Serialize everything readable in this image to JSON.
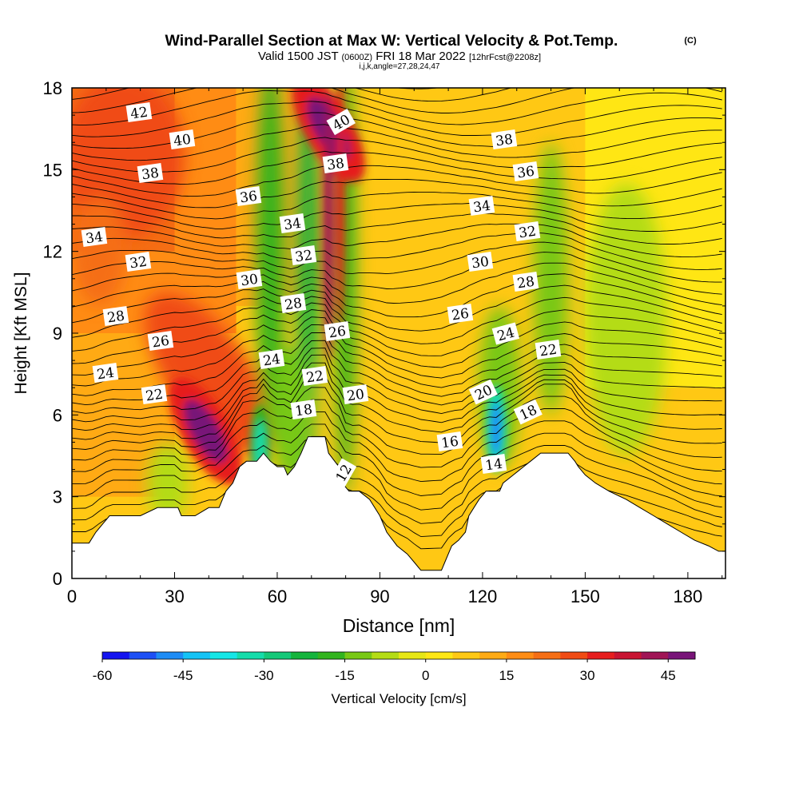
{
  "chart_data": {
    "type": "heatmap",
    "title": {
      "main": "Wind-Parallel Section at Max W: Vertical Velocity & Pot.Temp.",
      "copyright": "(C)",
      "valid_prefix": "Valid 1500 JST",
      "utc": "(0600Z)",
      "date": "FRI 18 Mar 2022",
      "forecast": "[12hrFcst@2208z]",
      "grid": "i,j,k,angle=27,28,24,47"
    },
    "xlabel": "Distance [nm]",
    "ylabel": "Height [Kft MSL]",
    "xlim": [
      0,
      191
    ],
    "ylim": [
      0,
      18
    ],
    "x_ticks": [
      0,
      30,
      60,
      90,
      120,
      150,
      180
    ],
    "y_ticks": [
      0,
      3,
      6,
      9,
      12,
      15,
      18
    ],
    "colorbar": {
      "label": "Vertical Velocity [cm/s]",
      "ticks": [
        "-60",
        "-45",
        "-30",
        "-15",
        "0",
        "15",
        "30",
        "45"
      ],
      "min": -60,
      "max": 50,
      "step": 5,
      "colors": [
        "#1414f0",
        "#1e50f5",
        "#1e8cf5",
        "#14c3f5",
        "#14e6e6",
        "#14dcaa",
        "#14c878",
        "#14b43c",
        "#32b41e",
        "#78c814",
        "#b4dc14",
        "#e6e614",
        "#ffe614",
        "#ffc814",
        "#ffaa14",
        "#ff8c14",
        "#f56e14",
        "#f04b14",
        "#e61e1e",
        "#c81432",
        "#a01455",
        "#781478"
      ]
    },
    "potential_temperature_contour_labels": [
      "42",
      "40",
      "38",
      "36",
      "34",
      "32",
      "30",
      "28",
      "26",
      "24",
      "22",
      "20",
      "18",
      "16",
      "14",
      "12"
    ],
    "terrain": [
      [
        0,
        1.3
      ],
      [
        5,
        1.3
      ],
      [
        7,
        1.7
      ],
      [
        9,
        2.0
      ],
      [
        11,
        2.3
      ],
      [
        20,
        2.3
      ],
      [
        25,
        2.6
      ],
      [
        31,
        2.6
      ],
      [
        32,
        2.3
      ],
      [
        36,
        2.3
      ],
      [
        40,
        2.6
      ],
      [
        43,
        2.6
      ],
      [
        44,
        2.9
      ],
      [
        45,
        3.2
      ],
      [
        47,
        3.5
      ],
      [
        49,
        4.1
      ],
      [
        51,
        4.3
      ],
      [
        54,
        4.3
      ],
      [
        56,
        4.6
      ],
      [
        58,
        4.3
      ],
      [
        60,
        4.1
      ],
      [
        62,
        4.1
      ],
      [
        63,
        3.8
      ],
      [
        65,
        4.1
      ],
      [
        67,
        4.6
      ],
      [
        69,
        5.2
      ],
      [
        74,
        5.2
      ],
      [
        75,
        4.6
      ],
      [
        78,
        4.1
      ],
      [
        79,
        3.5
      ],
      [
        81,
        3.2
      ],
      [
        84,
        3.2
      ],
      [
        87,
        2.9
      ],
      [
        90,
        2.3
      ],
      [
        92,
        1.7
      ],
      [
        95,
        1.2
      ],
      [
        98,
        0.9
      ],
      [
        100,
        0.6
      ],
      [
        102,
        0.3
      ],
      [
        108,
        0.3
      ],
      [
        109,
        0.6
      ],
      [
        111,
        1.2
      ],
      [
        113,
        1.4
      ],
      [
        115,
        1.7
      ],
      [
        116,
        2.3
      ],
      [
        119,
        2.9
      ],
      [
        121,
        3.2
      ],
      [
        125,
        3.2
      ],
      [
        126,
        3.5
      ],
      [
        129,
        3.8
      ],
      [
        132,
        4.1
      ],
      [
        134,
        4.3
      ],
      [
        137,
        4.6
      ],
      [
        145,
        4.6
      ],
      [
        147,
        4.3
      ],
      [
        148,
        4.1
      ],
      [
        150,
        3.8
      ],
      [
        153,
        3.5
      ],
      [
        157,
        3.2
      ],
      [
        162,
        2.9
      ],
      [
        166,
        2.6
      ],
      [
        170,
        2.3
      ],
      [
        174,
        2.0
      ],
      [
        178,
        1.7
      ],
      [
        182,
        1.4
      ],
      [
        186,
        1.2
      ],
      [
        189,
        1.0
      ],
      [
        191,
        1.0
      ]
    ],
    "updraft_cores": [
      {
        "x": 39,
        "y": 5.4,
        "w_cm_s": 48
      },
      {
        "x": 75,
        "y": 16.5,
        "w_cm_s": 45
      }
    ],
    "downdraft_cores": [
      {
        "x": 124,
        "y": 5.5,
        "w_cm_s": -50
      },
      {
        "x": 55,
        "y": 4.8,
        "w_cm_s": -35
      }
    ]
  }
}
